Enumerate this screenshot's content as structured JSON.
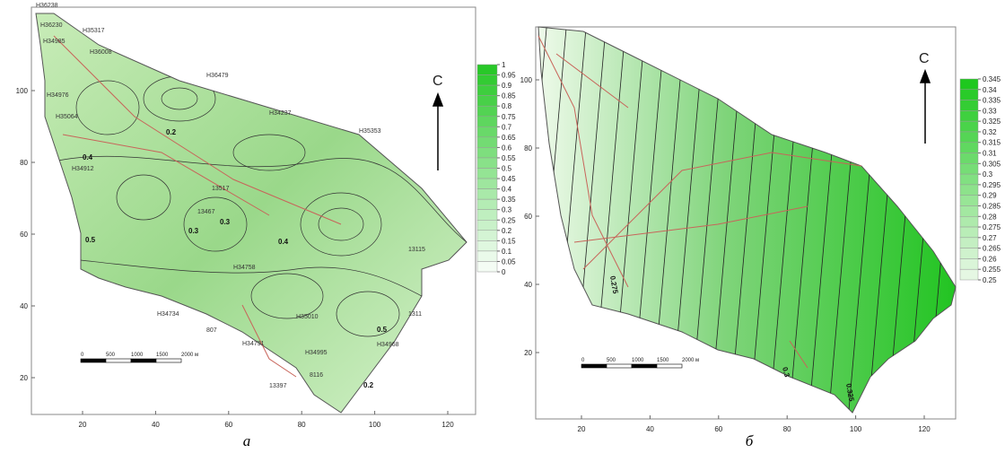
{
  "panels": [
    {
      "caption": "а",
      "north": "С",
      "xticks": [
        20,
        40,
        60,
        80,
        100,
        120
      ],
      "yticks": [
        20,
        40,
        60,
        80,
        100
      ],
      "colorbar": [
        1,
        0.95,
        0.9,
        0.85,
        0.8,
        0.75,
        0.7,
        0.65,
        0.6,
        0.55,
        0.5,
        0.45,
        0.4,
        0.35,
        0.3,
        0.25,
        0.2,
        0.15,
        0.1,
        0.05,
        0
      ],
      "scale": [
        "0",
        "500",
        "1000",
        "1500",
        "2000 м"
      ],
      "wells": [
        "H36238",
        "H36230",
        "H34985",
        "H35317",
        "H36008",
        "H34976",
        "H36479",
        "H34237",
        "H35064",
        "H34912",
        "H35353",
        "H34734",
        "H34791",
        "H34758",
        "H35010",
        "H34968",
        "13397",
        "13517",
        "13115",
        "H34995",
        "1311",
        "807",
        "8116",
        "13467"
      ],
      "contours": [
        "0.4",
        "0.5",
        "0.3",
        "0.2",
        "0.4",
        "0.5",
        "0.3",
        "0.2"
      ]
    },
    {
      "caption": "б",
      "north": "С",
      "xticks": [
        20,
        40,
        60,
        80,
        100,
        120
      ],
      "yticks": [
        20,
        40,
        60,
        80,
        100
      ],
      "colorbar": [
        0.345,
        0.34,
        0.335,
        0.33,
        0.325,
        0.32,
        0.315,
        0.31,
        0.305,
        0.3,
        0.295,
        0.29,
        0.285,
        0.28,
        0.275,
        0.27,
        0.265,
        0.26,
        0.255,
        0.25
      ],
      "scale": [
        "0",
        "500",
        "1000",
        "1500",
        "2000 м"
      ],
      "contours": [
        "0.275",
        "0.3",
        "0.325"
      ]
    }
  ]
}
